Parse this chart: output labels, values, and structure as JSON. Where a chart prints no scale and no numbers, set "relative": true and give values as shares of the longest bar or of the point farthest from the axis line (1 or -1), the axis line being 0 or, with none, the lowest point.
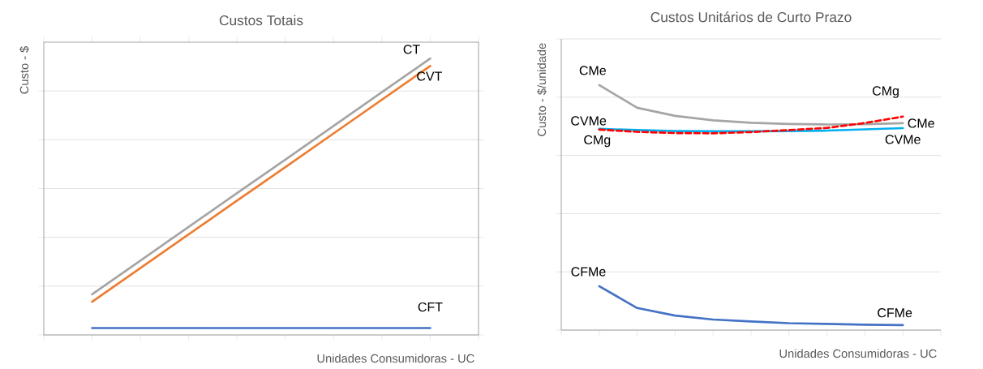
{
  "chart_data": [
    {
      "type": "line",
      "title": "Custos Totais",
      "xlabel": "Unidades Consumidoras - UC",
      "ylabel": "Custo - $",
      "relative": true,
      "grid": "y",
      "categories": [
        null,
        null,
        null,
        null,
        null,
        null,
        null,
        null,
        null,
        null
      ],
      "series": [
        {
          "name": "CT",
          "color": "#a5a5a5",
          "values": [
            null,
            0.147,
            0.269,
            0.391,
            0.513,
            0.634,
            0.756,
            0.878,
            1.0,
            null
          ]
        },
        {
          "name": "CVT",
          "color": "#ed7d31",
          "values": [
            null,
            0.12,
            0.242,
            0.364,
            0.486,
            0.607,
            0.729,
            0.851,
            0.973,
            null
          ]
        },
        {
          "name": "CFT",
          "color": "#4472c4",
          "values": [
            null,
            0.025,
            0.025,
            0.025,
            0.025,
            0.025,
            0.025,
            0.025,
            0.025,
            null
          ]
        }
      ]
    },
    {
      "type": "line",
      "title": "Custos Unitários de Curto Prazo",
      "xlabel": "Unidades Consumidoras - UC",
      "ylabel": "Custo - $/unidade",
      "relative": true,
      "grid": "y",
      "categories": [
        null,
        null,
        null,
        null,
        null,
        null,
        null,
        null,
        null,
        null,
        null
      ],
      "series": [
        {
          "name": "CMe",
          "color": "#a5a5a5",
          "values": [
            null,
            1.0,
            0.907,
            0.874,
            0.856,
            0.846,
            0.841,
            0.839,
            0.84,
            0.844,
            null
          ]
        },
        {
          "name": "CVMe",
          "color": "#00b0f0",
          "values": [
            null,
            0.821,
            0.816,
            0.812,
            0.811,
            0.811,
            0.812,
            0.814,
            0.819,
            0.824,
            null
          ]
        },
        {
          "name": "CMg",
          "color": "#ff0000",
          "line_style": "dashed",
          "values": [
            null,
            0.818,
            0.809,
            0.804,
            0.803,
            0.808,
            0.816,
            0.825,
            0.845,
            0.871,
            null
          ]
        },
        {
          "name": "CFMe",
          "color": "#4472c4",
          "values": [
            null,
            0.179,
            0.09,
            0.059,
            0.043,
            0.035,
            0.028,
            0.025,
            0.022,
            0.02,
            null
          ]
        }
      ],
      "annotations": [
        "CMe",
        "CVMe",
        "CMg",
        "CFMe"
      ]
    }
  ]
}
